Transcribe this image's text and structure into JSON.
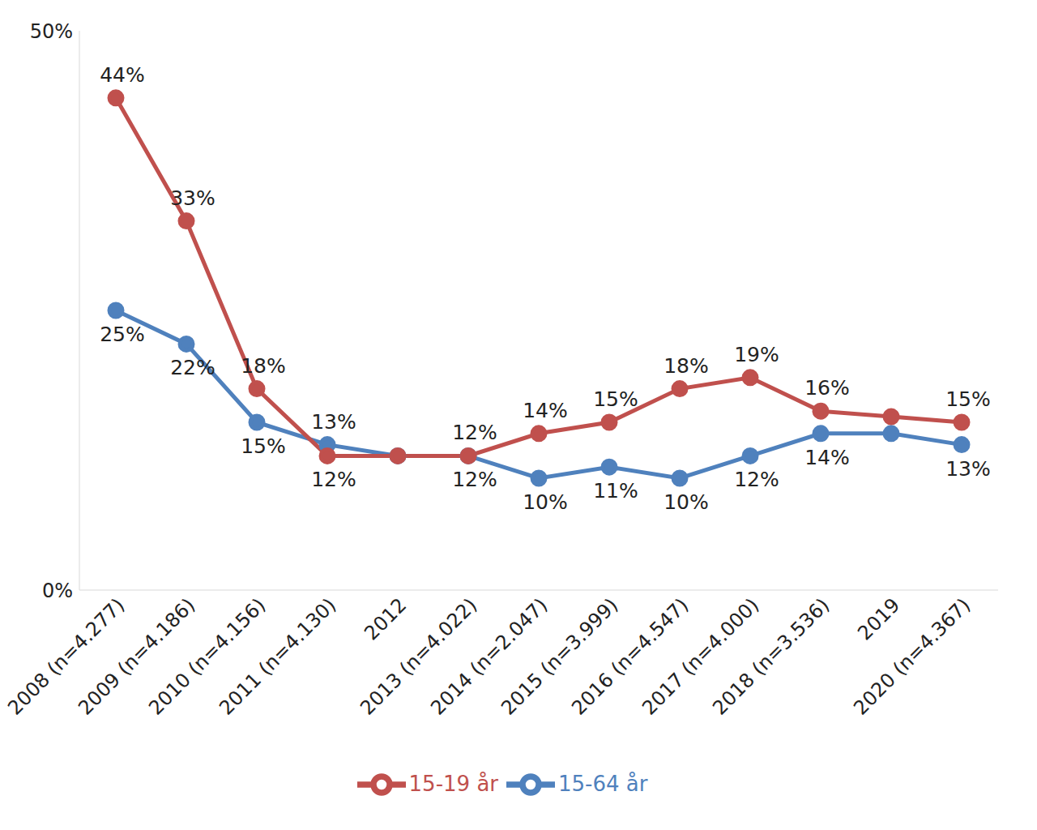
{
  "chart_data": {
    "type": "line",
    "categories": [
      "2008 (n=4.277)",
      "2009 (n=4.186)",
      "2010 (n=4.156)",
      "2011 (n=4.130)",
      "2012",
      "2013 (n=4.022)",
      "2014 (n=2.047)",
      "2015 (n=3.999)",
      "2016 (n=4.547)",
      "2017 (n=4.000)",
      "2018 (n=3.536)",
      "2019",
      "2020 (n=4.367)"
    ],
    "series": [
      {
        "name": "15-64 år",
        "color": "#4f81bd",
        "marker": "circle",
        "line_style": "solid",
        "values": [
          25,
          22,
          15,
          13,
          12,
          12,
          10,
          11,
          10,
          12,
          14,
          14,
          13
        ],
        "value_labels": [
          "25%",
          "22%",
          "15%",
          "13%",
          null,
          "12%",
          "10%",
          "11%",
          "10%",
          "12%",
          "14%",
          null,
          "13%"
        ]
      },
      {
        "name": "15-19 år",
        "color": "#c0504d",
        "marker": "circle",
        "line_style": "solid",
        "values": [
          44,
          33,
          18,
          12,
          12,
          12,
          14,
          15,
          18,
          19,
          16,
          15.5,
          15
        ],
        "value_labels": [
          "44%",
          "33%",
          "18%",
          "12%",
          null,
          "12%",
          "14%",
          "15%",
          "18%",
          "19%",
          "16%",
          null,
          "15%"
        ]
      }
    ],
    "ylim": [
      0,
      50
    ],
    "yticks": [
      {
        "value": 0,
        "label": "0%"
      },
      {
        "value": 50,
        "label": "50%"
      }
    ],
    "grid": false,
    "legend": "bottom",
    "data_labels": true
  }
}
